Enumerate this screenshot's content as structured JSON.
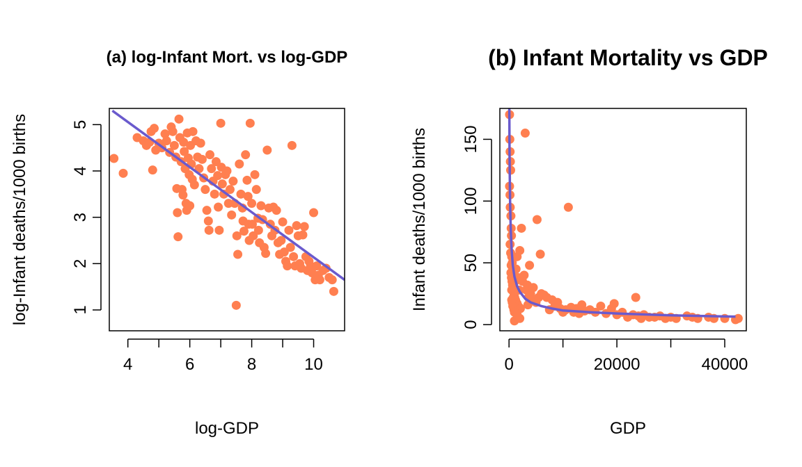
{
  "chart_data": [
    {
      "type": "scatter",
      "title": "(a) log-Infant Mort. vs log-GDP",
      "xlabel": "log-GDP",
      "ylabel": "log-Infant deaths/1000 births",
      "xlim": [
        3.4,
        11.0
      ],
      "ylim": [
        0.55,
        5.35
      ],
      "xticks": [
        4,
        6,
        8,
        10
      ],
      "xticks_minor": [
        4,
        5,
        6,
        7,
        8,
        9,
        10
      ],
      "yticks": [
        1,
        2,
        3,
        4,
        5
      ],
      "point_color": "#FF7F50",
      "line_color": "#6A5ACD",
      "fit_line": {
        "x": [
          3.5,
          11.0
        ],
        "y": [
          5.3,
          1.65
        ]
      },
      "points": [
        [
          3.55,
          4.27
        ],
        [
          3.85,
          3.95
        ],
        [
          4.3,
          4.72
        ],
        [
          4.5,
          4.65
        ],
        [
          4.6,
          4.55
        ],
        [
          4.7,
          4.62
        ],
        [
          4.75,
          4.85
        ],
        [
          4.8,
          4.02
        ],
        [
          4.85,
          4.92
        ],
        [
          4.9,
          4.45
        ],
        [
          5.0,
          4.6
        ],
        [
          5.1,
          4.5
        ],
        [
          5.2,
          4.8
        ],
        [
          5.25,
          4.65
        ],
        [
          5.35,
          4.4
        ],
        [
          5.4,
          4.95
        ],
        [
          5.45,
          4.85
        ],
        [
          5.5,
          4.55
        ],
        [
          5.55,
          4.3
        ],
        [
          5.58,
          3.62
        ],
        [
          5.6,
          3.1
        ],
        [
          5.62,
          2.58
        ],
        [
          5.65,
          5.12
        ],
        [
          5.68,
          4.72
        ],
        [
          5.72,
          4.2
        ],
        [
          5.75,
          3.6
        ],
        [
          5.78,
          3.48
        ],
        [
          5.8,
          4.62
        ],
        [
          5.82,
          4.42
        ],
        [
          5.85,
          4.05
        ],
        [
          5.88,
          3.3
        ],
        [
          5.9,
          3.15
        ],
        [
          5.92,
          4.82
        ],
        [
          5.95,
          4.28
        ],
        [
          5.98,
          3.92
        ],
        [
          6.0,
          3.25
        ],
        [
          6.02,
          4.55
        ],
        [
          6.05,
          4.15
        ],
        [
          6.08,
          3.82
        ],
        [
          6.1,
          4.85
        ],
        [
          6.15,
          3.7
        ],
        [
          6.2,
          4.65
        ],
        [
          6.25,
          4.3
        ],
        [
          6.3,
          4.05
        ],
        [
          6.35,
          4.6
        ],
        [
          6.4,
          4.25
        ],
        [
          6.45,
          3.85
        ],
        [
          6.5,
          3.6
        ],
        [
          6.55,
          3.15
        ],
        [
          6.6,
          2.92
        ],
        [
          6.62,
          2.72
        ],
        [
          6.65,
          4.35
        ],
        [
          6.7,
          4.05
        ],
        [
          6.75,
          3.78
        ],
        [
          6.8,
          3.5
        ],
        [
          6.85,
          4.2
        ],
        [
          6.9,
          3.9
        ],
        [
          6.92,
          3.22
        ],
        [
          6.95,
          2.72
        ],
        [
          7.0,
          5.03
        ],
        [
          7.02,
          4.08
        ],
        [
          7.05,
          3.72
        ],
        [
          7.1,
          3.5
        ],
        [
          7.15,
          3.92
        ],
        [
          7.2,
          4.0
        ],
        [
          7.25,
          3.3
        ],
        [
          7.3,
          3.6
        ],
        [
          7.35,
          3.05
        ],
        [
          7.4,
          3.78
        ],
        [
          7.45,
          3.3
        ],
        [
          7.5,
          1.1
        ],
        [
          7.52,
          2.6
        ],
        [
          7.55,
          2.2
        ],
        [
          7.6,
          4.15
        ],
        [
          7.65,
          3.5
        ],
        [
          7.7,
          3.2
        ],
        [
          7.72,
          2.92
        ],
        [
          7.75,
          2.7
        ],
        [
          7.8,
          4.35
        ],
        [
          7.85,
          3.8
        ],
        [
          7.88,
          3.45
        ],
        [
          7.9,
          2.85
        ],
        [
          7.92,
          2.5
        ],
        [
          7.95,
          5.03
        ],
        [
          8.0,
          3.3
        ],
        [
          8.02,
          2.85
        ],
        [
          8.05,
          2.6
        ],
        [
          8.1,
          3.92
        ],
        [
          8.15,
          3.6
        ],
        [
          8.2,
          2.98
        ],
        [
          8.22,
          2.72
        ],
        [
          8.25,
          2.45
        ],
        [
          8.3,
          3.25
        ],
        [
          8.35,
          2.95
        ],
        [
          8.4,
          2.35
        ],
        [
          8.45,
          2.22
        ],
        [
          8.5,
          4.45
        ],
        [
          8.55,
          3.2
        ],
        [
          8.6,
          2.85
        ],
        [
          8.65,
          2.6
        ],
        [
          8.7,
          3.22
        ],
        [
          8.75,
          2.72
        ],
        [
          8.8,
          3.15
        ],
        [
          8.85,
          2.45
        ],
        [
          8.9,
          2.2
        ],
        [
          8.95,
          2.5
        ],
        [
          9.0,
          2.9
        ],
        [
          9.05,
          2.25
        ],
        [
          9.1,
          2.05
        ],
        [
          9.15,
          1.95
        ],
        [
          9.2,
          2.72
        ],
        [
          9.25,
          2.35
        ],
        [
          9.3,
          4.55
        ],
        [
          9.35,
          2.15
        ],
        [
          9.4,
          1.95
        ],
        [
          9.45,
          2.82
        ],
        [
          9.5,
          2.6
        ],
        [
          9.55,
          2.0
        ],
        [
          9.6,
          1.9
        ],
        [
          9.65,
          2.62
        ],
        [
          9.7,
          2.8
        ],
        [
          9.75,
          2.15
        ],
        [
          9.8,
          1.85
        ],
        [
          9.85,
          2.05
        ],
        [
          9.9,
          1.95
        ],
        [
          9.95,
          1.8
        ],
        [
          10.0,
          3.1
        ],
        [
          10.05,
          1.65
        ],
        [
          10.1,
          1.95
        ],
        [
          10.15,
          1.75
        ],
        [
          10.2,
          1.65
        ],
        [
          10.3,
          1.85
        ],
        [
          10.4,
          1.9
        ],
        [
          10.5,
          1.7
        ],
        [
          10.6,
          1.65
        ],
        [
          10.65,
          1.4
        ]
      ]
    },
    {
      "type": "scatter",
      "title": "(b) Infant Mortality vs GDP",
      "xlabel": "GDP",
      "ylabel": "Infant deaths/1000 births",
      "xlim": [
        -1700,
        44000
      ],
      "ylim": [
        -5,
        175
      ],
      "xticks": [
        0,
        20000,
        40000
      ],
      "xticks_minor": [
        0,
        10000,
        20000,
        30000,
        40000
      ],
      "yticks": [
        0,
        50,
        100,
        150
      ],
      "point_color": "#FF7F50",
      "line_color": "#6A5ACD",
      "fit_curve": {
        "x": [
          50,
          100,
          150,
          200,
          300,
          400,
          500,
          700,
          1000,
          1500,
          2000,
          3000,
          4000,
          6000,
          8000,
          10000,
          15000,
          20000,
          30000,
          42000
        ],
        "y": [
          175,
          140,
          118,
          100,
          80,
          68,
          60,
          48,
          39,
          31,
          26.5,
          21,
          18,
          15,
          13,
          11.5,
          10,
          9,
          7.5,
          6.5
        ]
      },
      "points": [
        [
          100,
          170
        ],
        [
          150,
          150
        ],
        [
          200,
          140
        ],
        [
          250,
          132
        ],
        [
          300,
          125
        ],
        [
          100,
          112
        ],
        [
          180,
          105
        ],
        [
          220,
          95
        ],
        [
          350,
          88
        ],
        [
          400,
          78
        ],
        [
          450,
          72
        ],
        [
          200,
          65
        ],
        [
          300,
          58
        ],
        [
          500,
          55
        ],
        [
          600,
          50
        ],
        [
          700,
          45
        ],
        [
          350,
          42
        ],
        [
          450,
          38
        ],
        [
          550,
          35
        ],
        [
          650,
          32
        ],
        [
          750,
          30
        ],
        [
          850,
          28
        ],
        [
          950,
          25
        ],
        [
          1050,
          22
        ],
        [
          1200,
          20
        ],
        [
          1350,
          18
        ],
        [
          1500,
          17
        ],
        [
          1700,
          15
        ],
        [
          1900,
          14
        ],
        [
          2100,
          13
        ],
        [
          400,
          48
        ],
        [
          500,
          28
        ],
        [
          600,
          18
        ],
        [
          700,
          15
        ],
        [
          800,
          22
        ],
        [
          900,
          12
        ],
        [
          1000,
          10
        ],
        [
          1100,
          35
        ],
        [
          1300,
          45
        ],
        [
          1500,
          55
        ],
        [
          1700,
          38
        ],
        [
          1900,
          28
        ],
        [
          2000,
          60
        ],
        [
          2300,
          78
        ],
        [
          2500,
          35
        ],
        [
          2800,
          40
        ],
        [
          3000,
          155
        ],
        [
          3200,
          28
        ],
        [
          3400,
          32
        ],
        [
          3600,
          22
        ],
        [
          3800,
          48
        ],
        [
          4000,
          25
        ],
        [
          4200,
          20
        ],
        [
          4500,
          30
        ],
        [
          5000,
          18
        ],
        [
          5200,
          85
        ],
        [
          5500,
          22
        ],
        [
          5800,
          57
        ],
        [
          6000,
          25
        ],
        [
          6500,
          24
        ],
        [
          7000,
          22
        ],
        [
          7500,
          12
        ],
        [
          8000,
          20
        ],
        [
          8500,
          15
        ],
        [
          9000,
          18
        ],
        [
          9500,
          13
        ],
        [
          10000,
          10
        ],
        [
          10500,
          12
        ],
        [
          11000,
          95
        ],
        [
          11500,
          14
        ],
        [
          12000,
          10
        ],
        [
          12500,
          13
        ],
        [
          13000,
          9
        ],
        [
          13500,
          16
        ],
        [
          14000,
          11
        ],
        [
          15000,
          12
        ],
        [
          16000,
          10
        ],
        [
          17000,
          15
        ],
        [
          18000,
          9
        ],
        [
          19000,
          13
        ],
        [
          19500,
          17
        ],
        [
          20000,
          8
        ],
        [
          21000,
          10
        ],
        [
          22000,
          6
        ],
        [
          23000,
          8
        ],
        [
          23500,
          22
        ],
        [
          24000,
          7
        ],
        [
          24500,
          5
        ],
        [
          25000,
          8
        ],
        [
          26000,
          6
        ],
        [
          27000,
          6
        ],
        [
          28000,
          7
        ],
        [
          29000,
          5
        ],
        [
          30000,
          6
        ],
        [
          31000,
          5
        ],
        [
          33000,
          7
        ],
        [
          34000,
          6
        ],
        [
          35000,
          5
        ],
        [
          37000,
          6
        ],
        [
          38000,
          5
        ],
        [
          40000,
          5
        ],
        [
          42000,
          4
        ],
        [
          42500,
          5
        ],
        [
          1000,
          3
        ],
        [
          2000,
          5
        ],
        [
          1500,
          8
        ],
        [
          500,
          20
        ],
        [
          800,
          42
        ],
        [
          1200,
          27
        ],
        [
          3500,
          16
        ]
      ]
    }
  ]
}
